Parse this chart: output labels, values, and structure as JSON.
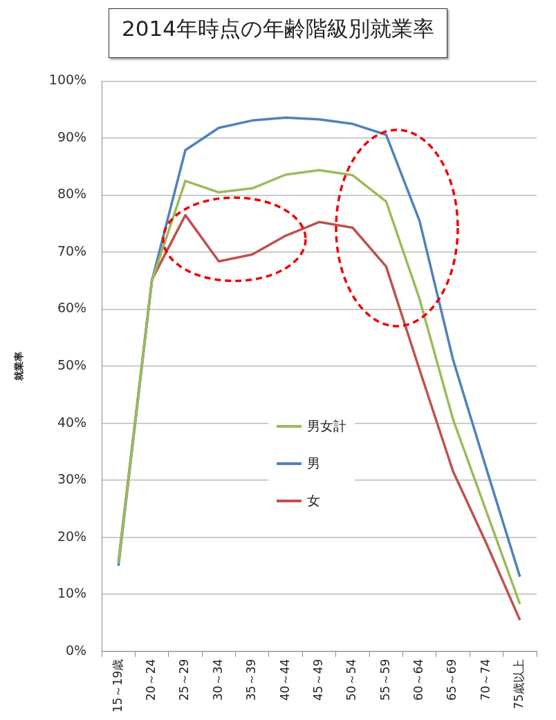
{
  "chart_data": {
    "type": "line",
    "title": "2014年時点の年齢階級別就業率",
    "ylabel": "就業率",
    "categories": [
      "15～19歳",
      "20～24",
      "25～29",
      "30～34",
      "35～39",
      "40～44",
      "45～49",
      "50～54",
      "55～59",
      "60～64",
      "65～69",
      "70～74",
      "75歳以上"
    ],
    "series": [
      {
        "name": "男女計",
        "color": "#9bbb59",
        "values": [
          15.5,
          65,
          82.5,
          80.5,
          81.2,
          83.6,
          84.4,
          83.5,
          78.9,
          61.8,
          40.7,
          24.5,
          8.3
        ]
      },
      {
        "name": "男",
        "color": "#4f81bd",
        "values": [
          15,
          65,
          87.9,
          91.8,
          93.1,
          93.6,
          93.3,
          92.5,
          90.6,
          75.5,
          51.2,
          32,
          13.1
        ]
      },
      {
        "name": "女",
        "color": "#c0504d",
        "values": [
          15.8,
          65.2,
          76.5,
          68.4,
          69.6,
          72.9,
          75.3,
          74.3,
          67.5,
          49.4,
          31.6,
          18.9,
          5.5
        ]
      }
    ],
    "ylim": [
      0,
      100
    ],
    "yticks": [
      {
        "value": 0,
        "label": "0%"
      },
      {
        "value": 10,
        "label": "10%"
      },
      {
        "value": 20,
        "label": "20%"
      },
      {
        "value": 30,
        "label": "30%"
      },
      {
        "value": 40,
        "label": "40%"
      },
      {
        "value": 50,
        "label": "50%"
      },
      {
        "value": 60,
        "label": "60%"
      },
      {
        "value": 70,
        "label": "70%"
      },
      {
        "value": 80,
        "label": "80%"
      },
      {
        "value": 90,
        "label": "90%"
      },
      {
        "value": 100,
        "label": "100%"
      }
    ],
    "grid": "y",
    "legend": "center",
    "marker": "none",
    "line_style": "solid"
  }
}
